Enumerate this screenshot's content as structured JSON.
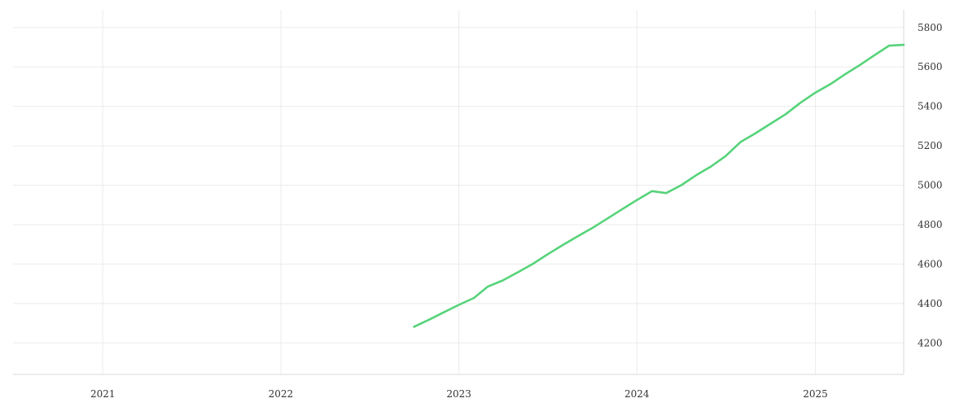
{
  "chart_data": {
    "type": "line",
    "title": "",
    "xlabel": "",
    "ylabel": "",
    "x_ticks": [
      "2021",
      "2022",
      "2023",
      "2024",
      "2025"
    ],
    "y_ticks": [
      4200,
      4400,
      4600,
      4800,
      5000,
      5200,
      5400,
      5600,
      5800
    ],
    "xlim": [
      "2020-07-01",
      "2025-07-01"
    ],
    "ylim": [
      4040,
      5890
    ],
    "grid": true,
    "y_axis_position": "right",
    "series": [
      {
        "color": "#56d37a",
        "x": [
          "2022-10-01",
          "2022-11-01",
          "2022-12-01",
          "2023-01-01",
          "2023-02-01",
          "2023-03-01",
          "2023-04-01",
          "2023-05-01",
          "2023-06-01",
          "2023-07-01",
          "2023-08-01",
          "2023-09-01",
          "2023-10-01",
          "2023-11-01",
          "2023-12-01",
          "2024-01-01",
          "2024-02-01",
          "2024-03-01",
          "2024-04-01",
          "2024-05-01",
          "2024-06-01",
          "2024-07-01",
          "2024-08-01",
          "2024-09-01",
          "2024-10-01",
          "2024-11-01",
          "2024-12-01",
          "2025-01-01",
          "2025-02-01",
          "2025-03-01",
          "2025-04-01",
          "2025-05-01",
          "2025-06-01",
          "2025-07-01"
        ],
        "values": [
          4282,
          4318,
          4355,
          4393,
          4428,
          4485,
          4517,
          4557,
          4600,
          4648,
          4695,
          4740,
          4782,
          4830,
          4877,
          4925,
          4970,
          4960,
          5000,
          5050,
          5095,
          5148,
          5220,
          5265,
          5312,
          5360,
          5418,
          5470,
          5513,
          5560,
          5608,
          5658,
          5708,
          5712
        ]
      }
    ]
  }
}
